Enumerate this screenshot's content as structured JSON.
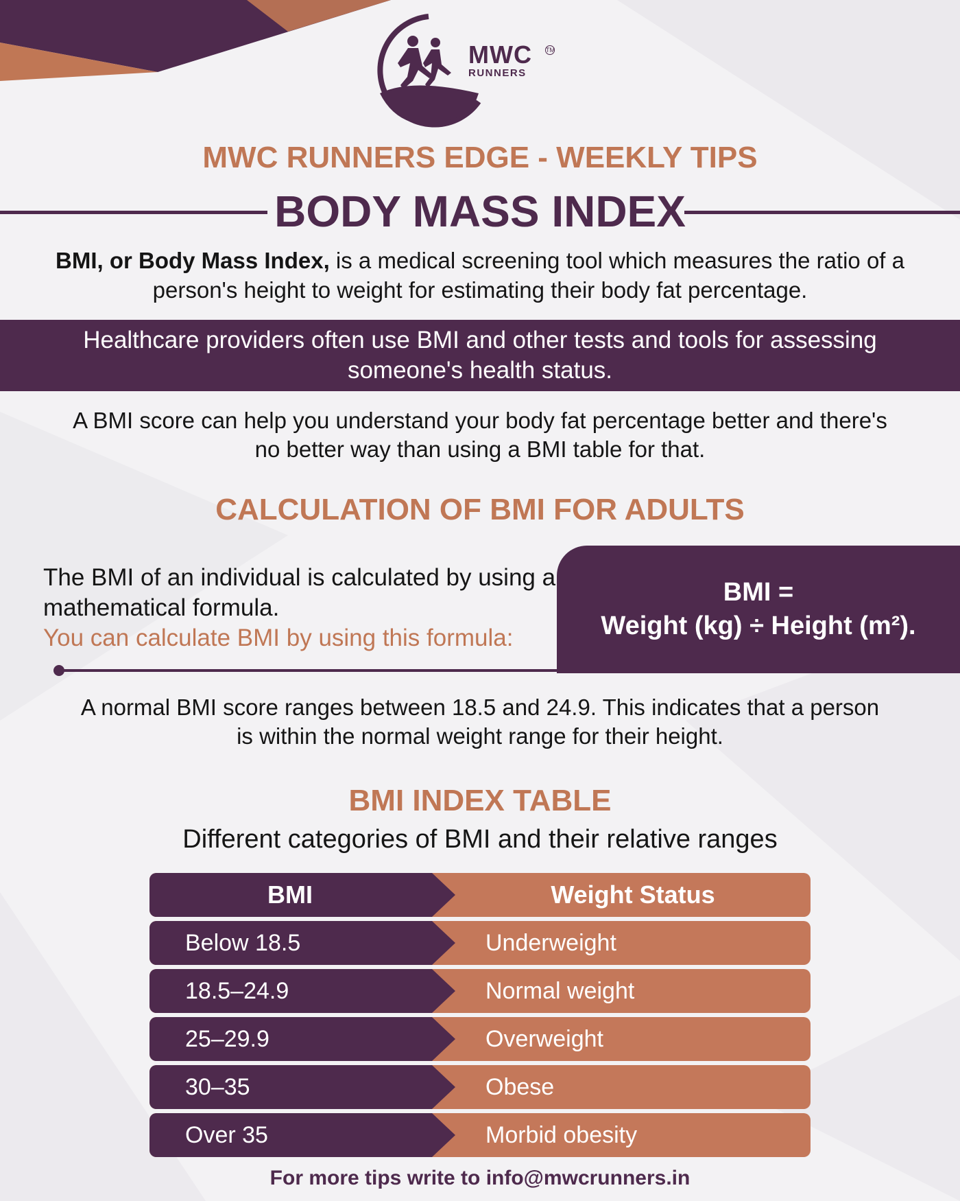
{
  "brand": {
    "logo_name": "MWC",
    "logo_sub": "RUNNERS",
    "logo_tm": "TM",
    "logo_icon": "runners-silhouette-icon",
    "colors": {
      "purple": "#4e2a4d",
      "copper": "#c07755",
      "copper_table": "#c4785a"
    }
  },
  "header": {
    "kicker": "MWC RUNNERS EDGE - WEEKLY TIPS",
    "title": "BODY MASS INDEX"
  },
  "intro": {
    "bold": "BMI, or Body Mass Index,",
    "rest": " is a medical screening tool which measures the ratio of a person's height to weight for estimating their body fat percentage."
  },
  "band_text": "Healthcare providers often use BMI and other tests and tools for assessing someone's health status.",
  "para2": "A BMI score can help you understand your body fat percentage better and there's no better way than using a BMI table for that.",
  "calculation": {
    "heading": "CALCULATION OF BMI FOR ADULTS",
    "text": "The BMI of an individual is calculated by using a mathematical formula.",
    "accent": "You can calculate BMI by using this formula:",
    "formula_line1": "BMI =",
    "formula_line2": "Weight (kg) ÷ Height (m²)."
  },
  "normal_range": "A normal BMI score ranges between 18.5 and 24.9. This indicates that a person is within the normal weight range for their height.",
  "table": {
    "heading": "BMI INDEX TABLE",
    "subheading": "Different categories of BMI and their relative ranges",
    "columns": [
      "BMI",
      "Weight Status"
    ],
    "rows": [
      {
        "bmi": "Below 18.5",
        "status": "Underweight"
      },
      {
        "bmi": "18.5–24.9",
        "status": "Normal weight"
      },
      {
        "bmi": "25–29.9",
        "status": "Overweight"
      },
      {
        "bmi": "30–35",
        "status": "Obese"
      },
      {
        "bmi": "Over 35",
        "status": "Morbid obesity"
      }
    ]
  },
  "footer": "For more tips write to info@mwcrunners.in"
}
